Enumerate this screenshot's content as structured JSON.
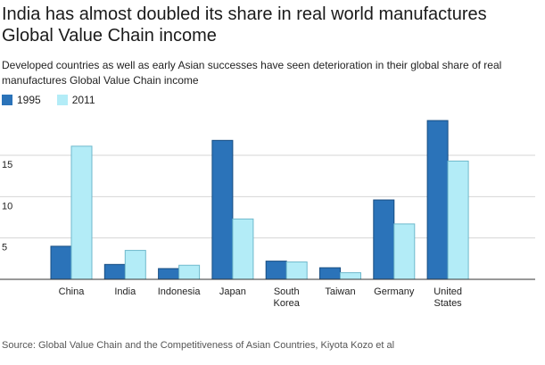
{
  "header": {
    "title": "India has almost doubled its share in real world manufactures Global Value Chain income",
    "subtitle": "Developed countries as well as early Asian successes have seen deterioration in their global share of real manufactures Global Value Chain income"
  },
  "legend": {
    "items": [
      {
        "label": "1995",
        "color": "#2b73b9"
      },
      {
        "label": "2011",
        "color": "#b3ecf7"
      }
    ]
  },
  "source": "Source: Global Value Chain and the Competitiveness of Asian Countries, Kiyota Kozo et al",
  "chart_data": {
    "type": "bar",
    "categories": [
      [
        "China"
      ],
      [
        "India"
      ],
      [
        "Indonesia"
      ],
      [
        "Japan"
      ],
      [
        "South",
        "Korea"
      ],
      [
        "Taiwan"
      ],
      [
        "Germany"
      ],
      [
        "United",
        "States"
      ]
    ],
    "series": [
      {
        "name": "1995",
        "color": "#2b73b9",
        "values": [
          4.0,
          1.8,
          1.3,
          16.8,
          2.2,
          1.4,
          9.6,
          19.2
        ]
      },
      {
        "name": "2011",
        "color": "#b3ecf7",
        "values": [
          16.1,
          3.5,
          1.7,
          7.3,
          2.1,
          0.8,
          6.7,
          14.3
        ]
      }
    ],
    "yticks": [
      5,
      10,
      15
    ],
    "ylim": [
      0,
      20
    ],
    "grid": true,
    "legend_position": "top-left"
  }
}
